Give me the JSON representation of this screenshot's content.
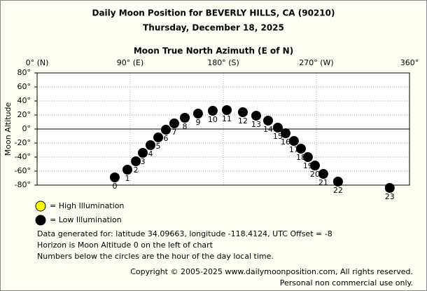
{
  "chart_data": {
    "type": "scatter",
    "title": "Daily Moon Position for BEVERLY HILLS, CA (90210)",
    "subtitle": "Thursday, December 18, 2025",
    "x_label": "Moon True North Azimuth (E of N)",
    "y_label": "Moon Altitude",
    "xlim": [
      0,
      360
    ],
    "xticks": [
      {
        "value": 0,
        "label": "0° (N)"
      },
      {
        "value": 90,
        "label": "90° (E)"
      },
      {
        "value": 180,
        "label": "180° (S)"
      },
      {
        "value": 270,
        "label": "270° (W)"
      },
      {
        "value": 360,
        "label": "360°"
      }
    ],
    "ylim": [
      -80,
      80
    ],
    "yticks": [
      {
        "value": 80,
        "label": "80°"
      },
      {
        "value": 60,
        "label": "60°"
      },
      {
        "value": 40,
        "label": "40°"
      },
      {
        "value": 20,
        "label": "20°"
      },
      {
        "value": 0,
        "label": "0°"
      },
      {
        "value": -20,
        "label": "-20°"
      },
      {
        "value": -40,
        "label": "-40°"
      },
      {
        "value": -60,
        "label": "-60°"
      },
      {
        "value": -80,
        "label": "-80°"
      }
    ],
    "grid": true,
    "series": [
      {
        "name": "= High Illumination",
        "color": "#ffff00",
        "x": [],
        "values": [],
        "hours": []
      },
      {
        "name": "= Low Illumination",
        "color": "#000000",
        "x": [
          75.1,
          87.3,
          95.5,
          102.2,
          109.6,
          117.1,
          124.5,
          132.6,
          142.8,
          155.6,
          169.8,
          183.4,
          198.9,
          211.8,
          223.3,
          232.7,
          240.2,
          248.3,
          255.1,
          261.8,
          268.6,
          276.7,
          290.9,
          340.9
        ],
        "values": [
          -69,
          -58,
          -46,
          -34,
          -23,
          -12,
          -1,
          8,
          16,
          22,
          26,
          27,
          24,
          19,
          12,
          2,
          -6,
          -17,
          -28,
          -40,
          -52,
          -64,
          -75,
          -84
        ],
        "hours": [
          0,
          1,
          2,
          3,
          4,
          5,
          6,
          7,
          8,
          9,
          10,
          11,
          12,
          13,
          14,
          15,
          16,
          17,
          18,
          19,
          20,
          21,
          22,
          23
        ]
      }
    ],
    "notes": [
      "Data generated for: latitude 34.09663, longitude -118.4124, UTC Offset = -8",
      "Horizon is Moon Altitude 0 on the left of chart",
      "Numbers below the circles are the hour of the day local time."
    ],
    "copyright": [
      "Copyright © 2005-2025 www.dailymoonposition.com, All rights reserved.",
      "Personal non commercial use only."
    ]
  }
}
